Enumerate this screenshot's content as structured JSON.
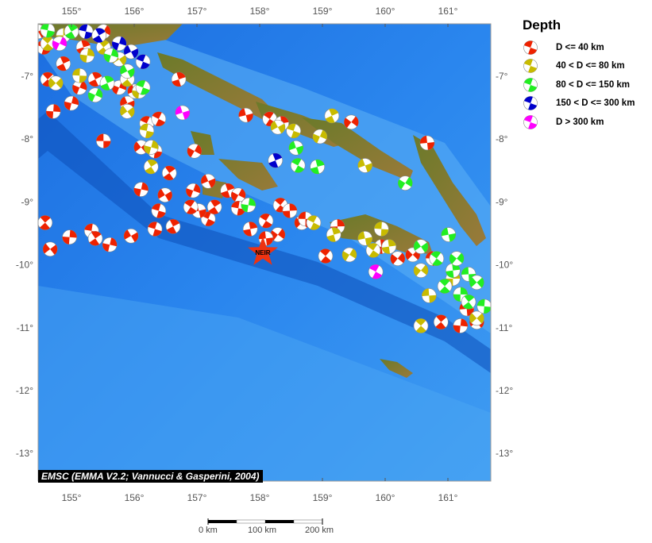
{
  "map": {
    "lon_range": [
      154.47,
      161.7
    ],
    "lat_range": [
      -13.43,
      -6.17
    ],
    "lon_ticks": [
      "155°",
      "156°",
      "157°",
      "158°",
      "159°",
      "160°",
      "161°"
    ],
    "lat_ticks": [
      "-7°",
      "-8°",
      "-9°",
      "-10°",
      "-11°",
      "-12°",
      "-13°"
    ],
    "station": {
      "label": "NEIR",
      "lon": 158.05,
      "lat": -9.8,
      "color": "#ee3311"
    },
    "credit": "EMSC (EMMA V2.2; Vannucci & Gasperini, 2004)",
    "scale_bar": {
      "labels": [
        "0 km",
        "100 km",
        "200 km"
      ]
    }
  },
  "legend": {
    "title": "Depth",
    "classes": [
      {
        "label": "D <= 40 km",
        "color": "#ee2200"
      },
      {
        "label": "40 < D <= 80 km",
        "color": "#c8bb00"
      },
      {
        "label": "80 < D <= 150 km",
        "color": "#22ee22"
      },
      {
        "label": "150 < D <= 300 km",
        "color": "#0000cc"
      },
      {
        "label": "D > 300 km",
        "color": "#ff00ff"
      }
    ]
  },
  "events": [
    [
      155.51,
      -8.03,
      0
    ],
    [
      154.62,
      -7.05,
      0
    ],
    [
      154.71,
      -7.56,
      0
    ],
    [
      156.11,
      -8.13,
      0
    ],
    [
      156.33,
      -8.19,
      0
    ],
    [
      156.56,
      -8.54,
      0
    ],
    [
      156.11,
      -8.8,
      0
    ],
    [
      156.49,
      -8.89,
      0
    ],
    [
      156.39,
      -9.14,
      0
    ],
    [
      156.62,
      -9.39,
      0
    ],
    [
      156.94,
      -8.82,
      0
    ],
    [
      157.18,
      -8.67,
      0
    ],
    [
      157.18,
      -9.27,
      0
    ],
    [
      157.49,
      -8.82,
      0
    ],
    [
      157.66,
      -8.89,
      0
    ],
    [
      157.82,
      -9.05,
      0
    ],
    [
      158.1,
      -9.3,
      0
    ],
    [
      157.85,
      -9.43,
      0
    ],
    [
      158.29,
      -9.52,
      0
    ],
    [
      158.1,
      -9.58,
      0
    ],
    [
      158.33,
      -9.05,
      0
    ],
    [
      158.48,
      -9.14,
      0
    ],
    [
      158.67,
      -9.33,
      0
    ],
    [
      158.73,
      -9.27,
      0
    ],
    [
      154.58,
      -9.33,
      0
    ],
    [
      154.97,
      -9.56,
      0
    ],
    [
      154.66,
      -9.75,
      0
    ],
    [
      155.32,
      -9.46,
      0
    ],
    [
      155.38,
      -9.58,
      0
    ],
    [
      155.61,
      -9.68,
      0
    ],
    [
      155.95,
      -9.54,
      0
    ],
    [
      156.33,
      -9.43,
      0
    ],
    [
      155.38,
      -7.05,
      0
    ],
    [
      155.76,
      -7.18,
      0
    ],
    [
      155.89,
      -7.43,
      0
    ],
    [
      156.2,
      -7.75,
      0
    ],
    [
      156.71,
      -7.05,
      0
    ],
    [
      156.96,
      -8.19,
      0
    ],
    [
      157.78,
      -7.62,
      0
    ],
    [
      158.16,
      -7.68,
      0
    ],
    [
      158.35,
      -7.75,
      0
    ],
    [
      159.46,
      -7.73,
      0
    ],
    [
      160.67,
      -8.06,
      0
    ],
    [
      159.05,
      -9.86,
      0
    ],
    [
      159.24,
      -9.39,
      0
    ],
    [
      160.44,
      -9.84,
      0
    ],
    [
      160.76,
      -9.9,
      0
    ],
    [
      160.89,
      -10.91,
      0
    ],
    [
      161.2,
      -10.97,
      0
    ],
    [
      161.46,
      -10.91,
      0
    ],
    [
      157.66,
      -9.1,
      0
    ],
    [
      157.28,
      -9.08,
      0
    ],
    [
      155.0,
      -7.43,
      0
    ],
    [
      154.47,
      -6.29,
      0
    ],
    [
      154.56,
      -6.54,
      0
    ],
    [
      154.87,
      -6.8,
      0
    ],
    [
      155.13,
      -7.18,
      0
    ],
    [
      156.01,
      -7.24,
      0
    ],
    [
      156.39,
      -7.68,
      0
    ],
    [
      155.19,
      -6.54,
      0
    ],
    [
      155.51,
      -6.29,
      0
    ],
    [
      157.03,
      -9.14,
      0
    ],
    [
      156.9,
      -9.08,
      0
    ],
    [
      159.94,
      -9.71,
      0
    ],
    [
      160.2,
      -9.9,
      0
    ],
    [
      161.3,
      -10.7,
      0
    ],
    [
      154.62,
      -6.48,
      1
    ],
    [
      154.87,
      -6.35,
      1
    ],
    [
      154.75,
      -7.11,
      1
    ],
    [
      155.13,
      -6.99,
      1
    ],
    [
      155.89,
      -7.05,
      1
    ],
    [
      156.08,
      -7.24,
      1
    ],
    [
      155.89,
      -7.56,
      1
    ],
    [
      156.2,
      -7.87,
      1
    ],
    [
      156.27,
      -8.44,
      1
    ],
    [
      156.27,
      -8.13,
      1
    ],
    [
      158.29,
      -7.81,
      1
    ],
    [
      158.54,
      -7.87,
      1
    ],
    [
      159.15,
      -7.63,
      1
    ],
    [
      158.96,
      -7.96,
      1
    ],
    [
      159.68,
      -8.42,
      1
    ],
    [
      158.86,
      -9.33,
      1
    ],
    [
      159.18,
      -9.52,
      1
    ],
    [
      159.43,
      -9.84,
      1
    ],
    [
      159.68,
      -9.58,
      1
    ],
    [
      159.81,
      -9.77,
      1
    ],
    [
      160.06,
      -9.71,
      1
    ],
    [
      160.57,
      -10.09,
      1
    ],
    [
      160.7,
      -10.49,
      1
    ],
    [
      160.57,
      -10.97,
      1
    ],
    [
      161.08,
      -10.22,
      1
    ],
    [
      161.46,
      -10.85,
      1
    ],
    [
      159.94,
      -9.43,
      1
    ],
    [
      155.51,
      -6.54,
      1
    ],
    [
      155.25,
      -6.67,
      1
    ],
    [
      155.76,
      -6.73,
      1
    ],
    [
      154.62,
      -6.27,
      2
    ],
    [
      155.0,
      -6.29,
      2
    ],
    [
      155.63,
      -6.67,
      2
    ],
    [
      155.89,
      -6.92,
      2
    ],
    [
      156.14,
      -7.18,
      2
    ],
    [
      155.57,
      -7.11,
      2
    ],
    [
      155.38,
      -7.3,
      2
    ],
    [
      158.58,
      -8.14,
      2
    ],
    [
      158.61,
      -8.42,
      2
    ],
    [
      158.92,
      -8.44,
      2
    ],
    [
      160.32,
      -8.7,
      2
    ],
    [
      161.01,
      -9.52,
      2
    ],
    [
      160.82,
      -9.9,
      2
    ],
    [
      161.08,
      -10.09,
      2
    ],
    [
      161.14,
      -9.9,
      2
    ],
    [
      161.33,
      -10.15,
      2
    ],
    [
      160.95,
      -10.34,
      2
    ],
    [
      161.2,
      -10.47,
      2
    ],
    [
      161.46,
      -10.28,
      2
    ],
    [
      161.58,
      -10.66,
      2
    ],
    [
      161.33,
      -10.59,
      2
    ],
    [
      157.82,
      -9.05,
      2
    ],
    [
      160.57,
      -9.71,
      2
    ],
    [
      155.23,
      -6.29,
      3
    ],
    [
      155.44,
      -6.35,
      3
    ],
    [
      155.76,
      -6.48,
      3
    ],
    [
      155.95,
      -6.61,
      3
    ],
    [
      156.14,
      -6.77,
      3
    ],
    [
      158.25,
      -8.34,
      3
    ],
    [
      154.81,
      -6.48,
      4
    ],
    [
      156.77,
      -7.58,
      4
    ],
    [
      159.85,
      -10.11,
      4
    ]
  ]
}
